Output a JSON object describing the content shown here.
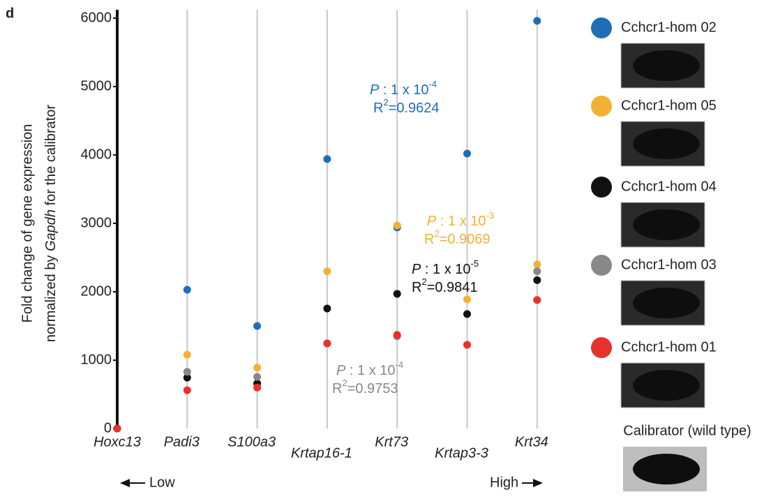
{
  "panel": "d",
  "chart_data": {
    "type": "scatter",
    "y_label_line1": "Fold change of gene expression",
    "y_label_line2": [
      "normalized by ",
      "Gapdh",
      " for the calibrator"
    ],
    "categories": [
      "Hoxc13",
      "Padi3",
      "S100a3",
      "Krtap16-1",
      "Krt73",
      "Krtap3-3",
      "Krt34"
    ],
    "ylim": [
      0,
      6000
    ],
    "yticks": [
      0,
      1000,
      2000,
      3000,
      4000,
      5000,
      6000
    ],
    "grid": true,
    "series": [
      {
        "name": "Cchcr1-hom 02",
        "color": "#1f6eb5",
        "values": [
          0,
          2030,
          1500,
          3940,
          2940,
          4020,
          5960
        ]
      },
      {
        "name": "Cchcr1-hom 05",
        "color": "#f2b134",
        "values": [
          0,
          1080,
          890,
          2300,
          2970,
          1890,
          2400
        ]
      },
      {
        "name": "Cchcr1-hom 04",
        "color": "#111111",
        "values": [
          0,
          745,
          660,
          1755,
          1970,
          1675,
          2170
        ]
      },
      {
        "name": "Cchcr1-hom 03",
        "color": "#888888",
        "values": [
          0,
          830,
          755,
          1245,
          1350,
          null,
          2300
        ]
      },
      {
        "name": "Cchcr1-hom 01",
        "color": "#e8312b",
        "values": [
          0,
          560,
          600,
          1245,
          1370,
          1225,
          1880
        ]
      }
    ],
    "calibrator": "Calibrator (wild type)",
    "annotations": [
      {
        "color": "#1f6eb5",
        "p": "P",
        "text": " : 1 x 10",
        "exp": "-4",
        "r": "R",
        "r_exp": "2",
        "r_text": "=0.9624"
      },
      {
        "color": "#f2b134",
        "p": "P",
        "text": " : 1 x 10",
        "exp": "-3",
        "r": "R",
        "r_exp": "2",
        "r_text": "=0.9069"
      },
      {
        "color": "#111111",
        "p": "P",
        "text": " : 1 x 10",
        "exp": "-5",
        "r": "R",
        "r_exp": "2",
        "r_text": "=0.9841"
      },
      {
        "color": "#888888",
        "p": "P",
        "text": " : 1 x 10",
        "exp": "-4",
        "r": "R",
        "r_exp": "2",
        "r_text": "=0.9753"
      }
    ],
    "low_label": "Low",
    "high_label": "High"
  }
}
